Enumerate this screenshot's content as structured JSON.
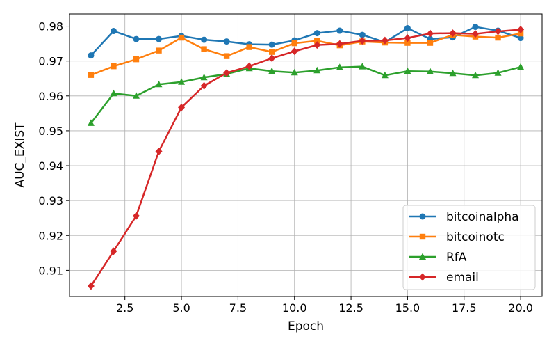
{
  "chart_data": {
    "type": "line",
    "xlabel": "Epoch",
    "ylabel": "AUC_EXIST",
    "xlim": [
      0.05,
      20.95
    ],
    "ylim": [
      0.9025,
      0.9835
    ],
    "x_ticks": [
      2.5,
      5.0,
      7.5,
      10.0,
      12.5,
      15.0,
      17.5,
      20.0
    ],
    "x_tick_labels": [
      "2.5",
      "5.0",
      "7.5",
      "10.0",
      "12.5",
      "15.0",
      "17.5",
      "20.0"
    ],
    "y_ticks": [
      0.91,
      0.92,
      0.93,
      0.94,
      0.95,
      0.96,
      0.97,
      0.98
    ],
    "y_tick_labels": [
      "0.91",
      "0.92",
      "0.93",
      "0.94",
      "0.95",
      "0.96",
      "0.97",
      "0.98"
    ],
    "grid": true,
    "legend_position": "bottom-right",
    "x": [
      1,
      2,
      3,
      4,
      5,
      6,
      7,
      8,
      9,
      10,
      11,
      12,
      13,
      14,
      15,
      16,
      17,
      18,
      19,
      20
    ],
    "series": [
      {
        "name": "bitcoinalpha",
        "color": "#1f77b4",
        "marker": "circle",
        "values": [
          0.9716,
          0.9786,
          0.9763,
          0.9763,
          0.9772,
          0.9761,
          0.9756,
          0.9748,
          0.9747,
          0.9759,
          0.978,
          0.9787,
          0.9775,
          0.9754,
          0.9794,
          0.9763,
          0.9768,
          0.9798,
          0.9787,
          0.9766
        ]
      },
      {
        "name": "bitcoinotc",
        "color": "#ff7f0e",
        "marker": "square",
        "values": [
          0.966,
          0.9685,
          0.9705,
          0.973,
          0.9767,
          0.9734,
          0.9714,
          0.974,
          0.9726,
          0.9751,
          0.9758,
          0.9745,
          0.9756,
          0.9753,
          0.9752,
          0.9752,
          0.9775,
          0.977,
          0.9767,
          0.9779
        ]
      },
      {
        "name": "RfA",
        "color": "#2ca02c",
        "marker": "triangle",
        "values": [
          0.9522,
          0.9607,
          0.96,
          0.9633,
          0.964,
          0.9653,
          0.9663,
          0.9679,
          0.9671,
          0.9667,
          0.9673,
          0.9682,
          0.9684,
          0.9659,
          0.9671,
          0.967,
          0.9665,
          0.9659,
          0.9666,
          0.9683
        ]
      },
      {
        "name": "email",
        "color": "#d62728",
        "marker": "diamond",
        "values": [
          0.9055,
          0.9155,
          0.9256,
          0.9441,
          0.9567,
          0.9629,
          0.9666,
          0.9685,
          0.9708,
          0.9728,
          0.9746,
          0.9749,
          0.9758,
          0.9759,
          0.9766,
          0.9779,
          0.978,
          0.9778,
          0.9785,
          0.979
        ]
      }
    ]
  }
}
